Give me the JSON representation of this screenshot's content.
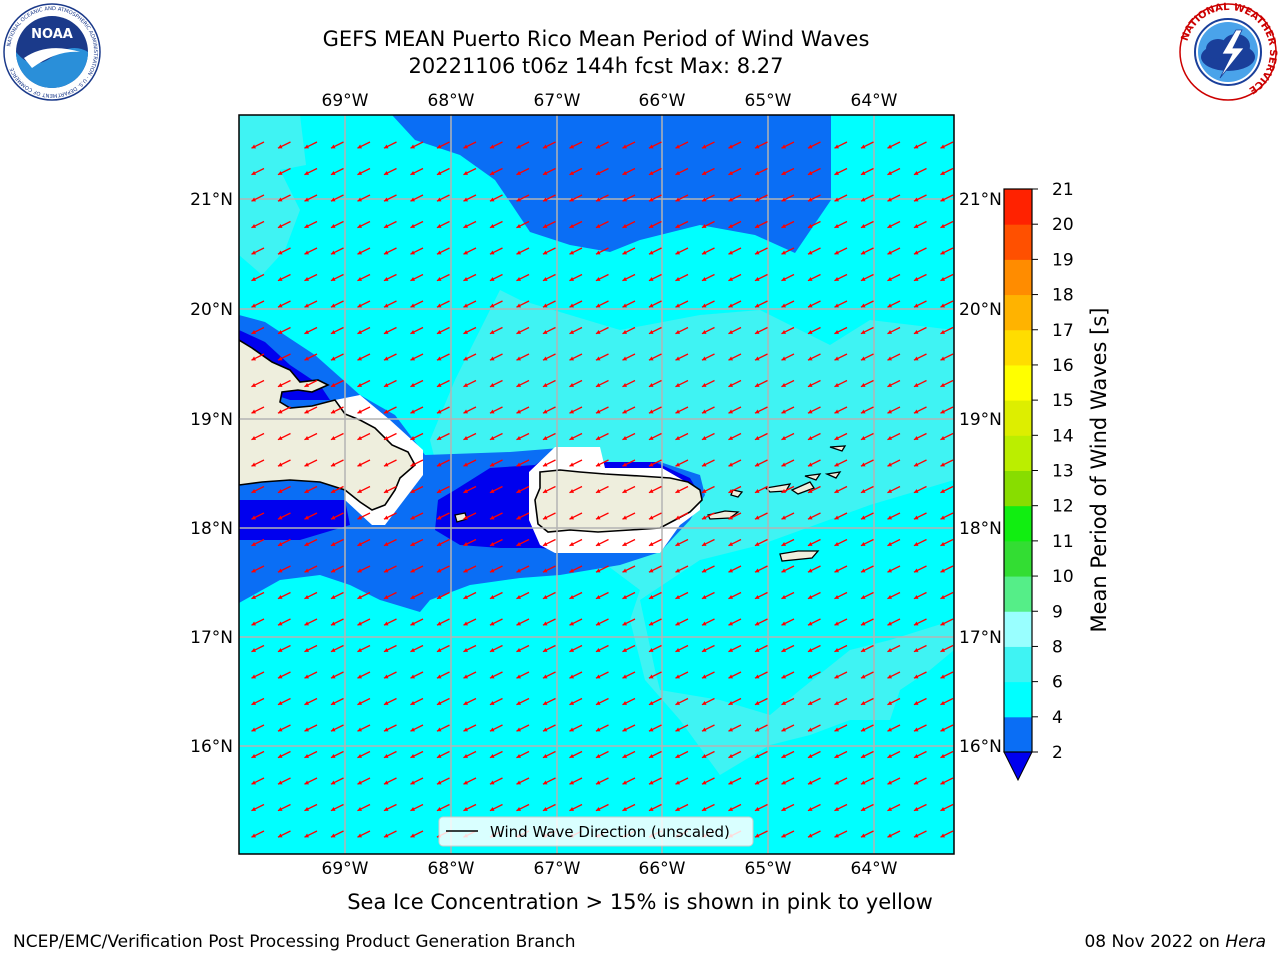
{
  "title_line1": "GEFS MEAN Puerto Rico Mean Period of Wind Waves",
  "title_line2": "20221106 t06z 144h fcst   Max: 8.27",
  "logos": {
    "left": "noaa-logo",
    "right": "national-weather-service-logo"
  },
  "logo_text": {
    "noaa": "NOAA",
    "noaa_ring": "NATIONAL OCEANIC AND ATMOSPHERIC ADMINISTRATION · U.S. DEPARTMENT OF COMMERCE",
    "nws_ring": "NATIONAL WEATHER SERVICE"
  },
  "map": {
    "lon_labels": [
      "69°W",
      "68°W",
      "67°W",
      "66°W",
      "65°W",
      "64°W"
    ],
    "lat_labels": [
      "21°N",
      "20°N",
      "19°N",
      "18°N",
      "17°N",
      "16°N"
    ],
    "lon_range": [
      -70.0,
      -63.25
    ],
    "lat_range": [
      15.0,
      21.75
    ],
    "grid": true,
    "vector_color": "#ff0000",
    "wave_direction_deg": 243,
    "legend_label": "Wind Wave Direction (unscaled)",
    "land_color": "#eeeedd",
    "ice_color": "#ffffff"
  },
  "colorbar": {
    "label": "Mean Period of Wind Waves [s]",
    "ticks": [
      "2",
      "4",
      "6",
      "8",
      "9",
      "10",
      "11",
      "12",
      "13",
      "14",
      "15",
      "16",
      "17",
      "18",
      "19",
      "20",
      "21"
    ],
    "colors": [
      "#0000ee",
      "#0a6ef5",
      "#00ffff",
      "#3ff3f3",
      "#99ffff",
      "#55ee88",
      "#33dd33",
      "#11ee11",
      "#88dd00",
      "#bbee00",
      "#ddee00",
      "#ffff00",
      "#ffdd00",
      "#ffb300",
      "#ff8c00",
      "#ff5000",
      "#ff2200",
      "#ff0000"
    ]
  },
  "subtitle": "Sea Ice Concentration > 15% is shown in pink to yellow",
  "credit": "NCEP/EMC/Verification Post Processing Product Generation Branch",
  "date_text": "08 Nov 2022 on",
  "system_name": "Hera"
}
